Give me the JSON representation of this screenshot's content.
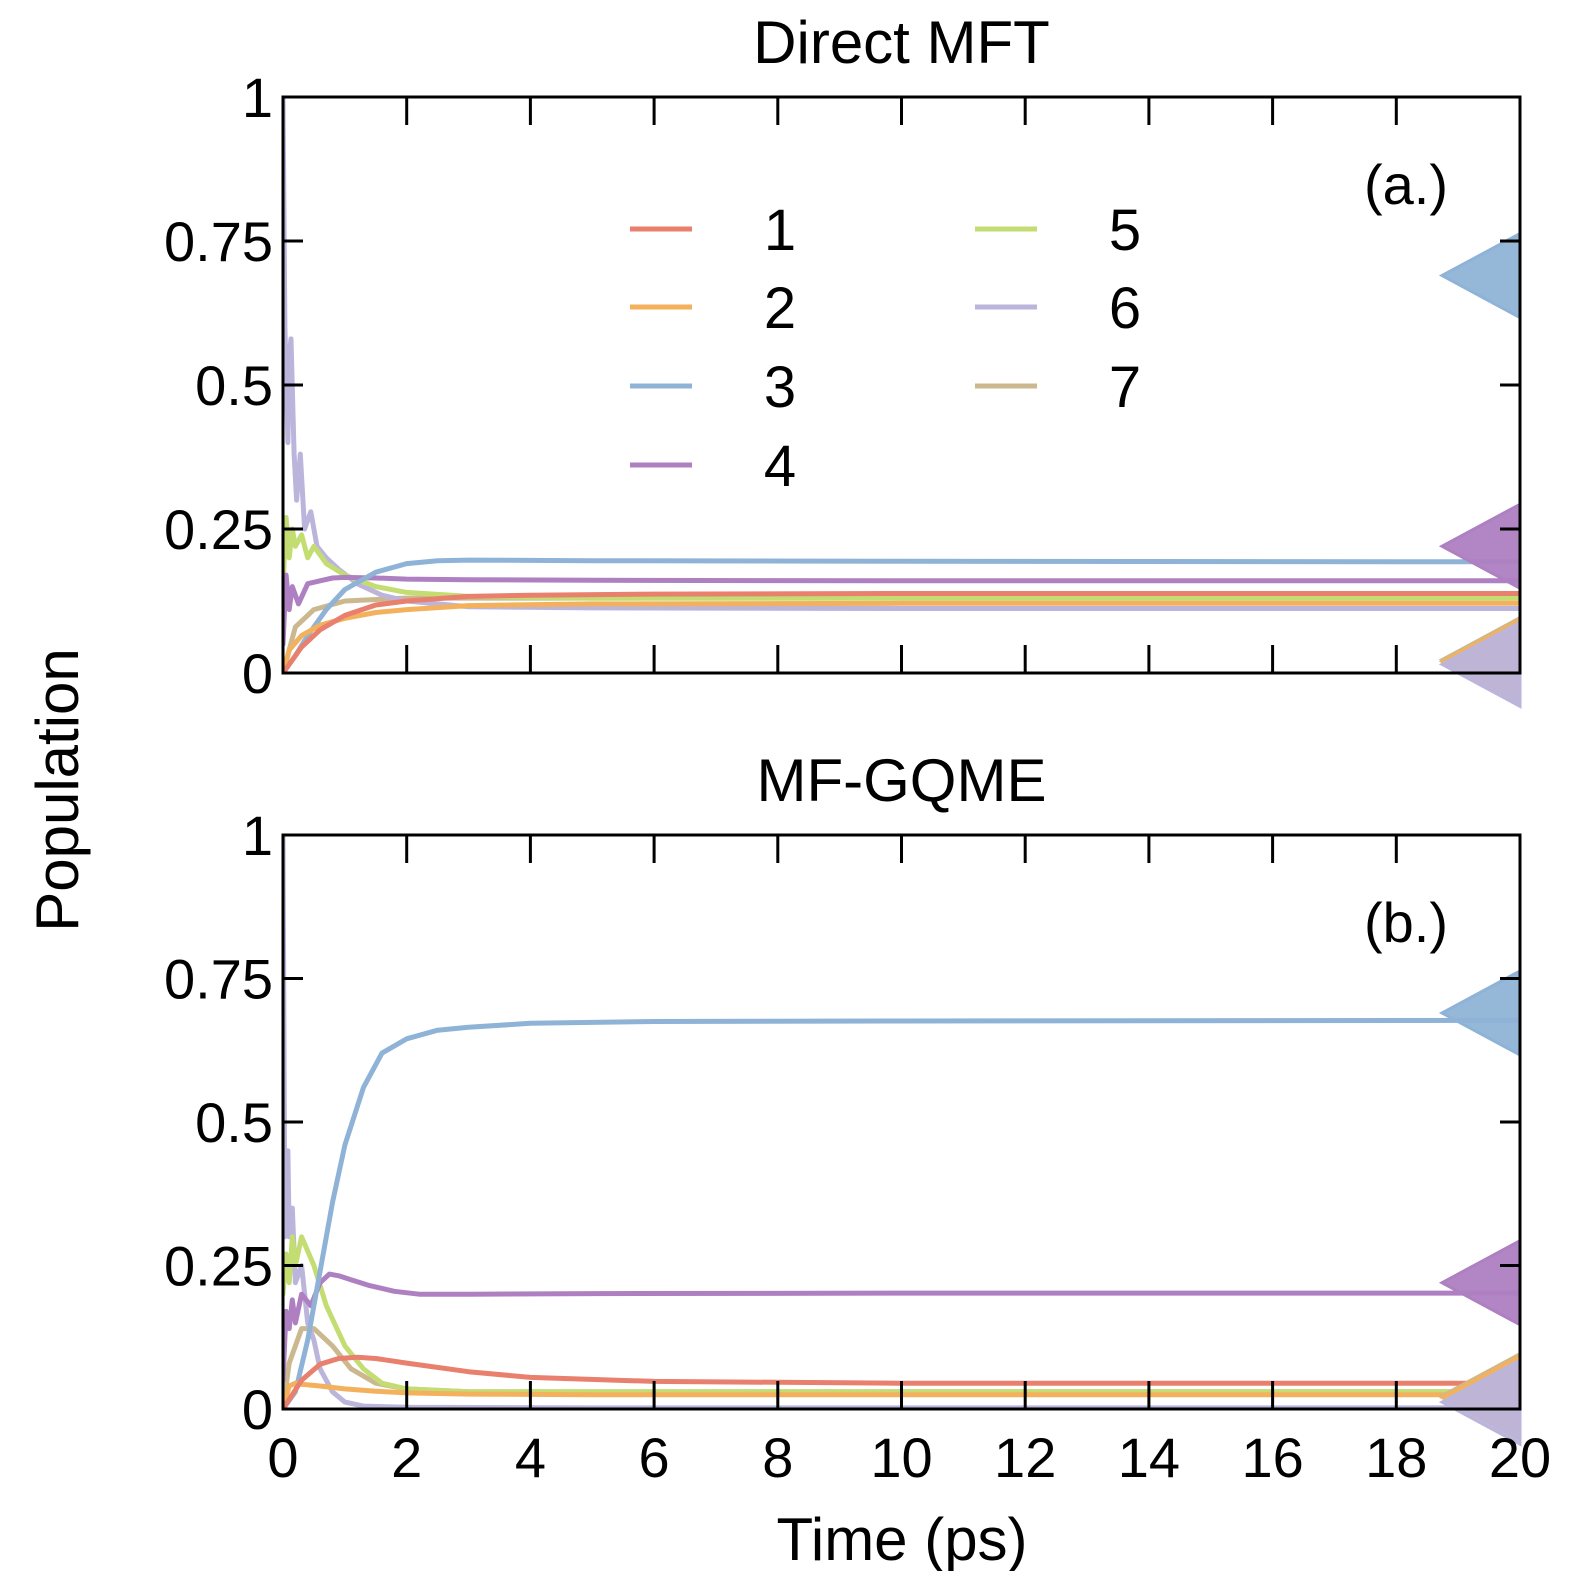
{
  "figure": {
    "ylabel": "Population",
    "xlabel": "Time (ps)"
  },
  "chart_data": [
    {
      "type": "line",
      "title": "Direct MFT",
      "panel_label": "(a.)",
      "xlabel": "Time (ps)",
      "ylabel": "Population",
      "xlim": [
        0,
        20
      ],
      "ylim": [
        0,
        1
      ],
      "xticks": [
        0,
        2,
        4,
        6,
        8,
        10,
        12,
        14,
        16,
        18,
        20
      ],
      "yticks": [
        0,
        0.25,
        0.5,
        0.75,
        1
      ],
      "ytick_labels": [
        "0",
        "0.25",
        "0.5",
        "0.75",
        "1"
      ],
      "show_xtick_labels": false,
      "grid": false,
      "series": [
        {
          "name": "1",
          "color": "#e8806d",
          "x": [
            0,
            0.3,
            0.6,
            1,
            1.5,
            2,
            3,
            4,
            6,
            10,
            20
          ],
          "y": [
            0,
            0.045,
            0.075,
            0.1,
            0.118,
            0.125,
            0.133,
            0.135,
            0.137,
            0.138,
            0.138
          ]
        },
        {
          "name": "2",
          "color": "#f3b15e",
          "x": [
            0,
            0.1,
            0.3,
            0.6,
            1,
            1.5,
            2,
            3,
            5,
            10,
            20
          ],
          "y": [
            0,
            0.04,
            0.065,
            0.083,
            0.095,
            0.105,
            0.11,
            0.117,
            0.12,
            0.121,
            0.121
          ]
        },
        {
          "name": "3",
          "color": "#8fb3d6",
          "x": [
            0,
            0.2,
            0.4,
            0.7,
            1,
            1.5,
            2,
            2.5,
            3,
            5,
            10,
            20
          ],
          "y": [
            0,
            0.03,
            0.065,
            0.11,
            0.145,
            0.175,
            0.19,
            0.195,
            0.196,
            0.195,
            0.194,
            0.193
          ]
        },
        {
          "name": "4",
          "color": "#ae80c2",
          "x": [
            0,
            0.05,
            0.1,
            0.15,
            0.25,
            0.4,
            0.6,
            0.8,
            1,
            1.5,
            2,
            3,
            5,
            10,
            20
          ],
          "y": [
            0.05,
            0.17,
            0.11,
            0.15,
            0.12,
            0.155,
            0.16,
            0.165,
            0.166,
            0.165,
            0.163,
            0.162,
            0.161,
            0.16,
            0.16
          ]
        },
        {
          "name": "5",
          "color": "#c4dd73",
          "x": [
            0,
            0.05,
            0.1,
            0.15,
            0.2,
            0.3,
            0.4,
            0.5,
            0.7,
            1,
            1.5,
            2,
            3,
            5,
            10,
            20
          ],
          "y": [
            0.15,
            0.27,
            0.2,
            0.25,
            0.22,
            0.24,
            0.2,
            0.22,
            0.19,
            0.17,
            0.15,
            0.14,
            0.133,
            0.13,
            0.13,
            0.13
          ]
        },
        {
          "name": "6",
          "color": "#bbb5dc",
          "x": [
            0,
            0.03,
            0.08,
            0.1,
            0.13,
            0.18,
            0.22,
            0.28,
            0.35,
            0.45,
            0.55,
            0.7,
            0.9,
            1.2,
            1.6,
            2,
            3,
            5,
            10,
            20
          ],
          "y": [
            1.0,
            0.6,
            0.4,
            0.55,
            0.58,
            0.38,
            0.3,
            0.38,
            0.25,
            0.28,
            0.22,
            0.2,
            0.18,
            0.155,
            0.135,
            0.125,
            0.115,
            0.113,
            0.112,
            0.112
          ]
        },
        {
          "name": "7",
          "color": "#cbb88e",
          "x": [
            0,
            0.2,
            0.5,
            1,
            2,
            3,
            5,
            10,
            20
          ],
          "y": [
            0,
            0.08,
            0.11,
            0.125,
            0.13,
            0.13,
            0.13,
            0.13,
            0.13
          ]
        }
      ],
      "markers": [
        {
          "series": "3",
          "color": "#8fb3d6",
          "y": 0.69
        },
        {
          "series": "4",
          "color": "#ae80c2",
          "y": 0.22
        },
        {
          "series": "1",
          "color": "#e8806d",
          "y": 0.023
        },
        {
          "series": "5",
          "color": "#c4dd73",
          "y": 0.023
        },
        {
          "series": "7",
          "color": "#cbb88e",
          "y": 0.023
        },
        {
          "series": "2",
          "color": "#f3b15e",
          "y": 0.02
        },
        {
          "series": "6",
          "color": "#bbb5dc",
          "y": 0.015
        }
      ]
    },
    {
      "type": "line",
      "title": "MF-GQME",
      "panel_label": "(b.)",
      "xlabel": "Time (ps)",
      "ylabel": "Population",
      "xlim": [
        0,
        20
      ],
      "ylim": [
        0,
        1
      ],
      "xticks": [
        0,
        2,
        4,
        6,
        8,
        10,
        12,
        14,
        16,
        18,
        20
      ],
      "yticks": [
        0,
        0.25,
        0.5,
        0.75,
        1
      ],
      "ytick_labels": [
        "0",
        "0.25",
        "0.5",
        "0.75",
        "1"
      ],
      "show_xtick_labels": true,
      "grid": false,
      "series": [
        {
          "name": "1",
          "color": "#e8806d",
          "x": [
            0,
            0.3,
            0.6,
            0.9,
            1.2,
            1.5,
            2,
            3,
            4,
            6,
            10,
            20
          ],
          "y": [
            0,
            0.05,
            0.078,
            0.088,
            0.09,
            0.088,
            0.08,
            0.065,
            0.055,
            0.048,
            0.045,
            0.045
          ]
        },
        {
          "name": "2",
          "color": "#f3b15e",
          "x": [
            0,
            0.1,
            0.2,
            0.3,
            0.6,
            1,
            1.5,
            2,
            3,
            5,
            10,
            20
          ],
          "y": [
            0,
            0.04,
            0.045,
            0.043,
            0.04,
            0.035,
            0.031,
            0.028,
            0.026,
            0.025,
            0.025,
            0.025
          ]
        },
        {
          "name": "3",
          "color": "#8fb3d6",
          "x": [
            0,
            0.2,
            0.4,
            0.6,
            0.8,
            1,
            1.3,
            1.6,
            2,
            2.5,
            3,
            4,
            6,
            10,
            20
          ],
          "y": [
            0,
            0.03,
            0.12,
            0.24,
            0.36,
            0.46,
            0.56,
            0.62,
            0.645,
            0.66,
            0.665,
            0.672,
            0.675,
            0.676,
            0.677
          ]
        },
        {
          "name": "4",
          "color": "#ae80c2",
          "x": [
            0,
            0.05,
            0.1,
            0.15,
            0.2,
            0.3,
            0.45,
            0.6,
            0.75,
            0.9,
            1.1,
            1.4,
            1.8,
            2.2,
            3,
            5,
            10,
            20
          ],
          "y": [
            0.05,
            0.17,
            0.14,
            0.19,
            0.15,
            0.2,
            0.18,
            0.22,
            0.235,
            0.232,
            0.225,
            0.215,
            0.205,
            0.2,
            0.2,
            0.201,
            0.202,
            0.202
          ]
        },
        {
          "name": "5",
          "color": "#c4dd73",
          "x": [
            0,
            0.05,
            0.1,
            0.15,
            0.2,
            0.3,
            0.5,
            0.7,
            1,
            1.3,
            1.6,
            2,
            3,
            5,
            10,
            20
          ],
          "y": [
            0.2,
            0.27,
            0.22,
            0.3,
            0.25,
            0.3,
            0.25,
            0.18,
            0.11,
            0.07,
            0.045,
            0.035,
            0.03,
            0.03,
            0.03,
            0.03
          ]
        },
        {
          "name": "6",
          "color": "#bbb5dc",
          "x": [
            0,
            0.03,
            0.08,
            0.1,
            0.15,
            0.2,
            0.3,
            0.4,
            0.5,
            0.6,
            0.8,
            1,
            1.3,
            2,
            5,
            10,
            20
          ],
          "y": [
            1.0,
            0.3,
            0.45,
            0.3,
            0.35,
            0.22,
            0.25,
            0.15,
            0.12,
            0.07,
            0.03,
            0.012,
            0.005,
            0.003,
            0.002,
            0.002,
            0.002
          ]
        },
        {
          "name": "7",
          "color": "#cbb88e",
          "x": [
            0,
            0.1,
            0.3,
            0.5,
            0.8,
            1.1,
            1.5,
            2,
            3,
            5,
            10,
            20
          ],
          "y": [
            0,
            0.08,
            0.14,
            0.14,
            0.11,
            0.07,
            0.045,
            0.035,
            0.03,
            0.03,
            0.03,
            0.03
          ]
        }
      ],
      "markers": [
        {
          "series": "3",
          "color": "#8fb3d6",
          "y": 0.69
        },
        {
          "series": "4",
          "color": "#ae80c2",
          "y": 0.22
        },
        {
          "series": "1",
          "color": "#e8806d",
          "y": 0.023
        },
        {
          "series": "5",
          "color": "#c4dd73",
          "y": 0.023
        },
        {
          "series": "7",
          "color": "#cbb88e",
          "y": 0.023
        },
        {
          "series": "2",
          "color": "#f3b15e",
          "y": 0.02
        },
        {
          "series": "6",
          "color": "#bbb5dc",
          "y": 0.012
        }
      ]
    }
  ]
}
